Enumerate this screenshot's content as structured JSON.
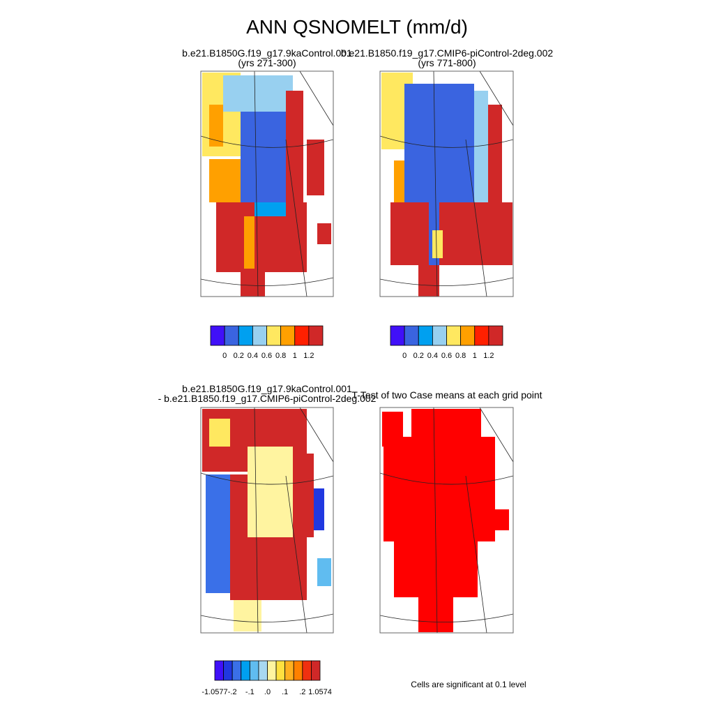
{
  "title": "ANN QSNOMELT (mm/d)",
  "panels": [
    {
      "lines": [
        "b.e21.B1850G.f19_g17.9kaControl.001",
        "(yrs 271-300)"
      ]
    },
    {
      "lines": [
        "b.e21.B1850.f19_g17.CMIP6-piControl-2deg.002",
        "(yrs 771-800)"
      ]
    },
    {
      "lines": [
        "b.e21.B1850G.f19_g17.9kaControl.001",
        "- b.e21.B1850.f19_g17.CMIP6-piControl-2deg.002"
      ]
    },
    {
      "lines": [
        "T-Test of two Case means at each grid point"
      ]
    }
  ],
  "colorbars": [
    {
      "colors": [
        "#4010f8",
        "#3a64e0",
        "#00a0f0",
        "#98d0f0",
        "#ffe860",
        "#ffa000",
        "#ff2000",
        "#d02828"
      ],
      "labels": [
        "0",
        "0.2",
        "0.4",
        "0.6",
        "0.8",
        "1",
        "1.2"
      ]
    },
    {
      "colors": [
        "#4010f8",
        "#3a64e0",
        "#00a0f0",
        "#98d0f0",
        "#ffe860",
        "#ffa000",
        "#ff2000",
        "#d02828"
      ],
      "labels": [
        "0",
        "0.2",
        "0.4",
        "0.6",
        "0.8",
        "1",
        "1.2"
      ]
    },
    {
      "colors": [
        "#4010f8",
        "#2038e0",
        "#3a70e8",
        "#00a0f0",
        "#60bcf0",
        "#a8d8f0",
        "#fff4a0",
        "#ffe040",
        "#ffb020",
        "#ff8000",
        "#f03010",
        "#d02828"
      ],
      "labels": [
        "-1.0577",
        "-.2",
        "-.1",
        ".0",
        ".1",
        ".2",
        "1.0574"
      ]
    }
  ],
  "note": "Cells are significant at 0.1 level"
}
